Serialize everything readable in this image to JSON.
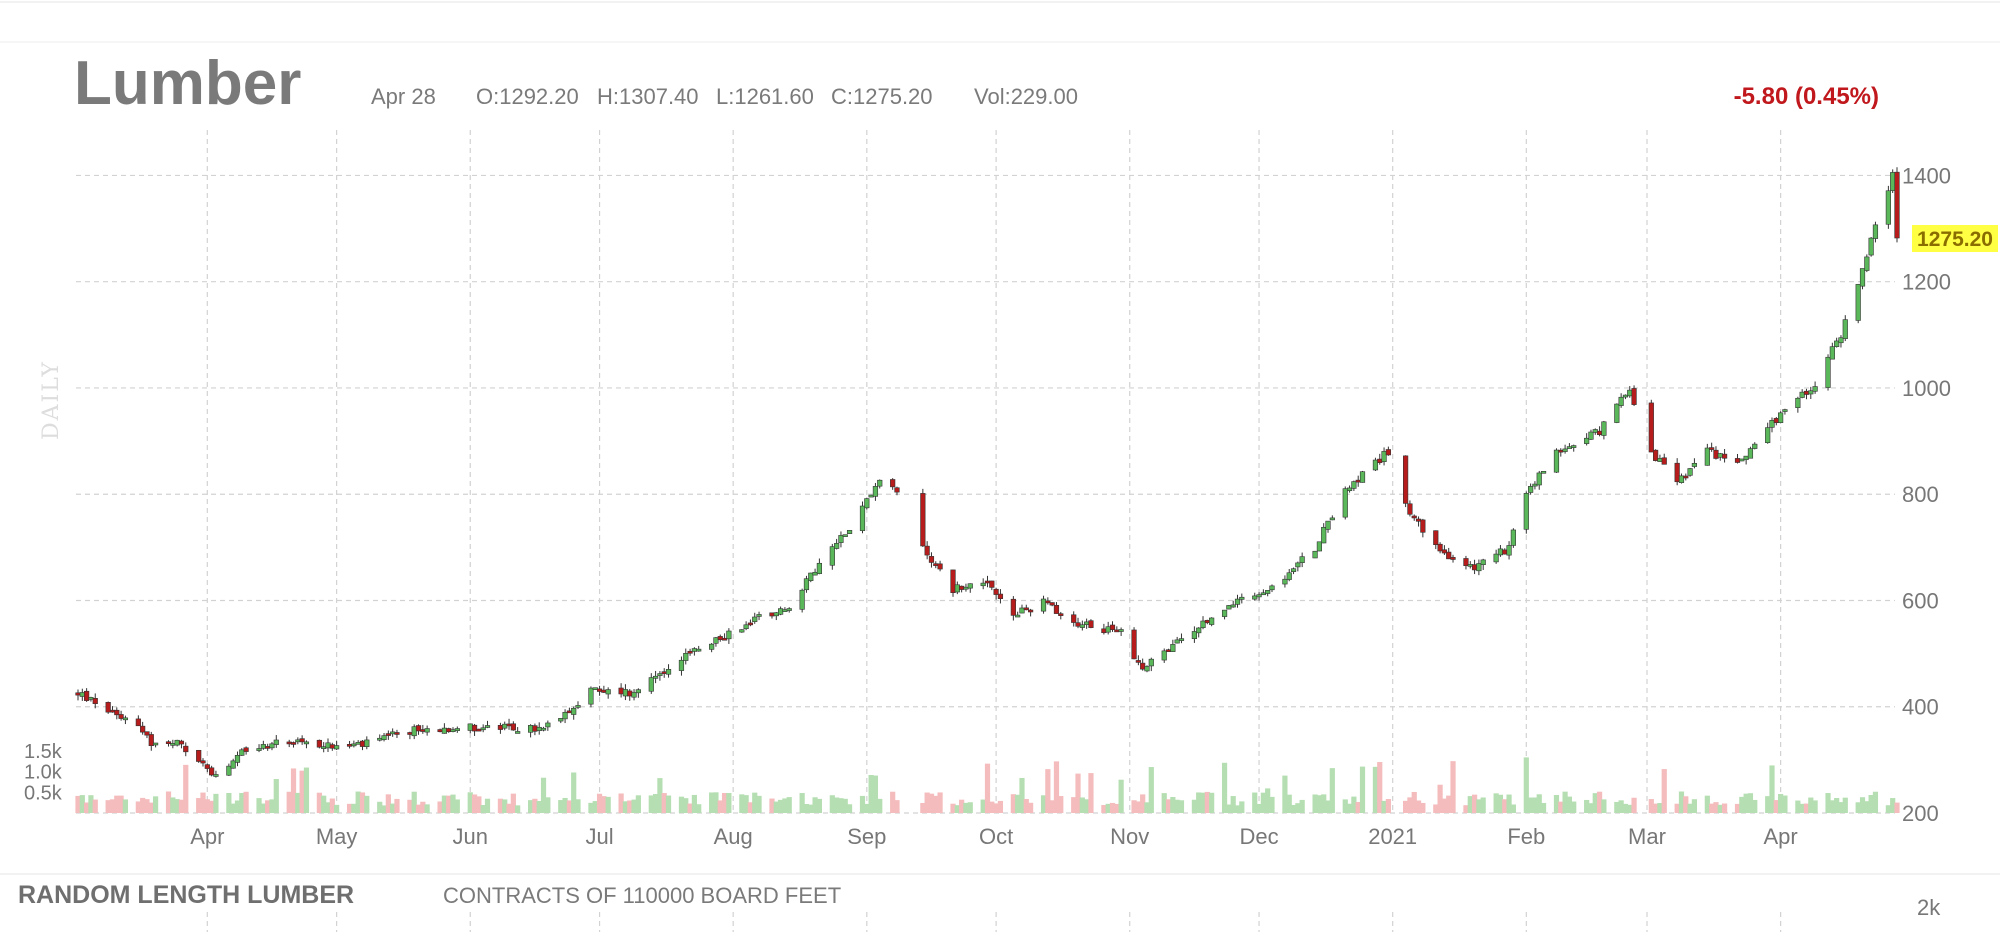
{
  "header": {
    "title": "Lumber",
    "date": "Apr 28",
    "open": "O:1292.20",
    "high": "H:1307.40",
    "low": "L:1261.60",
    "close": "C:1275.20",
    "volume": "Vol:229.00",
    "change": "-5.80 (0.45%)"
  },
  "period_label": "DAILY",
  "last_price_tag": "1275.20",
  "footer": {
    "name": "RANDOM LENGTH LUMBER",
    "description": "CONTRACTS OF 110000 BOARD FEET",
    "next_axis_tick": "2k"
  },
  "colors": {
    "up": "#5ab85a",
    "down": "#b71c1c",
    "volume_up": "#b5dfb2",
    "volume_down": "#f4bcbc",
    "highlight": "#ffff44",
    "change": "#c0181c"
  },
  "chart_data": {
    "type": "candlestick",
    "ylim": [
      200,
      1450
    ],
    "yticks": [
      "1400",
      "1200",
      "1000",
      "800",
      "600",
      "400",
      "200"
    ],
    "ytick_values": [
      1400,
      1200,
      1000,
      800,
      600,
      400,
      200
    ],
    "xticks": [
      "Apr",
      "May",
      "Jun",
      "Jul",
      "Aug",
      "Sep",
      "Oct",
      "Nov",
      "Dec",
      "2021",
      "Feb",
      "Mar",
      "Apr"
    ],
    "xtick_dates": [
      "2020-04-01",
      "2020-05-01",
      "2020-06-01",
      "2020-07-01",
      "2020-08-01",
      "2020-09-01",
      "2020-10-01",
      "2020-11-01",
      "2020-12-01",
      "2021-01-01",
      "2021-02-01",
      "2021-03-01",
      "2021-04-01"
    ],
    "date_range": [
      "2020-03-02",
      "2021-04-28"
    ],
    "volume_ticks": [
      "1.5k",
      "1.0k",
      "0.5k"
    ],
    "volume_tick_values": [
      1500,
      1000,
      500
    ],
    "anchors": [
      [
        "2020-03-02",
        425
      ],
      [
        "2020-03-09",
        395
      ],
      [
        "2020-03-16",
        370
      ],
      [
        "2020-03-19",
        330
      ],
      [
        "2020-03-25",
        330
      ],
      [
        "2020-03-30",
        300
      ],
      [
        "2020-04-03",
        265
      ],
      [
        "2020-04-10",
        320
      ],
      [
        "2020-04-20",
        335
      ],
      [
        "2020-05-01",
        325
      ],
      [
        "2020-05-08",
        330
      ],
      [
        "2020-05-18",
        355
      ],
      [
        "2020-05-29",
        362
      ],
      [
        "2020-06-08",
        360
      ],
      [
        "2020-06-18",
        358
      ],
      [
        "2020-06-30",
        435
      ],
      [
        "2020-07-08",
        425
      ],
      [
        "2020-07-20",
        490
      ],
      [
        "2020-07-27",
        520
      ],
      [
        "2020-08-07",
        570
      ],
      [
        "2020-08-14",
        590
      ],
      [
        "2020-08-24",
        700
      ],
      [
        "2020-08-30",
        760
      ],
      [
        "2020-09-04",
        830
      ],
      [
        "2020-09-08",
        800
      ],
      [
        "2020-09-14",
        700
      ],
      [
        "2020-09-21",
        620
      ],
      [
        "2020-09-28",
        640
      ],
      [
        "2020-10-05",
        570
      ],
      [
        "2020-10-12",
        600
      ],
      [
        "2020-10-19",
        560
      ],
      [
        "2020-10-30",
        540
      ],
      [
        "2020-11-04",
        470
      ],
      [
        "2020-11-12",
        520
      ],
      [
        "2020-11-24",
        590
      ],
      [
        "2020-12-04",
        620
      ],
      [
        "2020-12-14",
        700
      ],
      [
        "2020-12-21",
        810
      ],
      [
        "2020-12-31",
        880
      ],
      [
        "2021-01-04",
        780
      ],
      [
        "2021-01-12",
        690
      ],
      [
        "2021-01-20",
        660
      ],
      [
        "2021-01-28",
        700
      ],
      [
        "2021-02-01",
        800
      ],
      [
        "2021-02-08",
        880
      ],
      [
        "2021-02-18",
        920
      ],
      [
        "2021-02-25",
        1000
      ],
      [
        "2021-03-02",
        880
      ],
      [
        "2021-03-08",
        820
      ],
      [
        "2021-03-15",
        880
      ],
      [
        "2021-03-22",
        860
      ],
      [
        "2021-04-01",
        950
      ],
      [
        "2021-04-09",
        1010
      ],
      [
        "2021-04-15",
        1100
      ],
      [
        "2021-04-21",
        1250
      ],
      [
        "2021-04-27",
        1400
      ],
      [
        "2021-04-28",
        1275.2
      ]
    ],
    "gaps": [
      [
        "2020-09-09",
        "2020-09-13"
      ],
      [
        "2021-01-01",
        "2021-01-03"
      ],
      [
        "2021-02-27",
        "2021-03-01"
      ]
    ]
  }
}
